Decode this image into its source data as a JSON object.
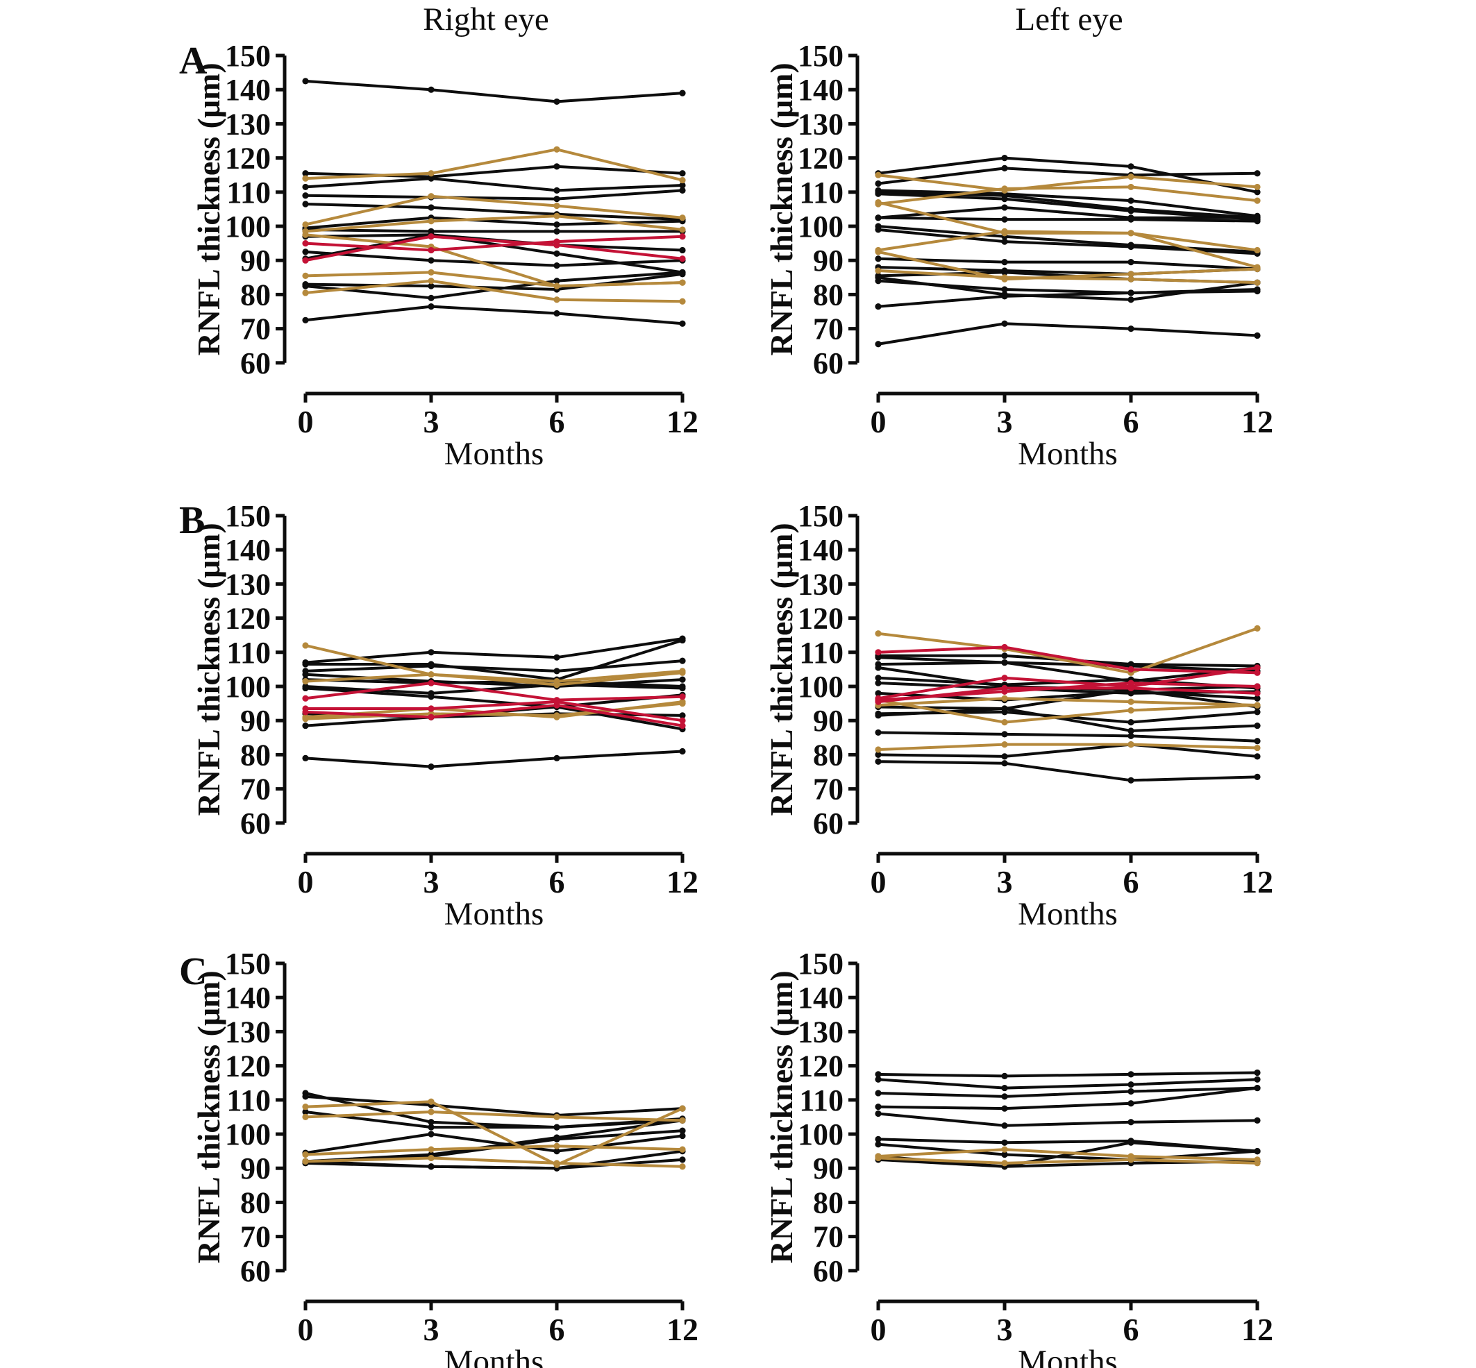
{
  "figure": {
    "titles": {
      "right": "Right eye",
      "left": "Left eye"
    },
    "row_letters": [
      {
        "letter": "A"
      },
      {
        "letter": "B"
      },
      {
        "letter": "C"
      }
    ]
  },
  "colors": {
    "black": "#0d0d0d",
    "tan": "#b5893c",
    "red": "#c41236",
    "axis": "#0d0d0d"
  },
  "axes": {
    "ylabel": "RNFL thickness (μm)",
    "xlabel": "Months",
    "y_ticks": [
      150,
      140,
      130,
      120,
      110,
      100,
      90,
      80,
      70,
      60
    ],
    "x_ticks": [
      "0",
      "3",
      "6",
      "12"
    ],
    "ylim": [
      60,
      150
    ],
    "x_spacing": "equal"
  },
  "chart_data": [
    {
      "type": "line",
      "id": "A-right",
      "row": "A",
      "eye": "Right eye",
      "x": [
        0,
        3,
        6,
        12
      ],
      "series": [
        {
          "color": "black",
          "values": [
            142.5,
            140,
            136.5,
            139
          ]
        },
        {
          "color": "black",
          "values": [
            115.5,
            114.5,
            117.5,
            115.5
          ]
        },
        {
          "color": "black",
          "values": [
            111.5,
            114,
            110.5,
            112
          ]
        },
        {
          "color": "black",
          "values": [
            109,
            108.5,
            108,
            110.5
          ]
        },
        {
          "color": "black",
          "values": [
            106.5,
            105.5,
            103.5,
            102
          ]
        },
        {
          "color": "black",
          "values": [
            99.5,
            102.5,
            100.5,
            101.5
          ]
        },
        {
          "color": "black",
          "values": [
            99,
            98.5,
            98.5,
            98.5
          ]
        },
        {
          "color": "black",
          "values": [
            97,
            97.5,
            94.5,
            93
          ]
        },
        {
          "color": "black",
          "values": [
            92.5,
            90,
            88.5,
            90
          ]
        },
        {
          "color": "black",
          "values": [
            90.5,
            97.5,
            92,
            86.5
          ]
        },
        {
          "color": "black",
          "values": [
            83,
            82.5,
            81.5,
            86
          ]
        },
        {
          "color": "black",
          "values": [
            82.5,
            79,
            84,
            86.5
          ]
        },
        {
          "color": "black",
          "values": [
            72.5,
            76.5,
            74.5,
            71.5
          ]
        },
        {
          "color": "tan",
          "values": [
            114,
            115.5,
            122.5,
            113.5
          ]
        },
        {
          "color": "tan",
          "values": [
            100.5,
            108.8,
            106,
            102.5
          ]
        },
        {
          "color": "tan",
          "values": [
            98.5,
            101.5,
            103,
            99
          ]
        },
        {
          "color": "tan",
          "values": [
            97.5,
            94,
            82.5,
            83.5
          ]
        },
        {
          "color": "tan",
          "values": [
            85.5,
            86.5,
            82.5,
            83.5
          ]
        },
        {
          "color": "tan",
          "values": [
            80.5,
            84,
            78.5,
            78
          ]
        },
        {
          "color": "red",
          "values": [
            95,
            93,
            95.5,
            97
          ]
        },
        {
          "color": "red",
          "values": [
            90,
            97,
            94.5,
            90.5
          ]
        }
      ]
    },
    {
      "type": "line",
      "id": "A-left",
      "row": "A",
      "eye": "Left eye",
      "x": [
        0,
        3,
        6,
        12
      ],
      "series": [
        {
          "color": "black",
          "values": [
            115.5,
            120,
            117.5,
            110
          ]
        },
        {
          "color": "black",
          "values": [
            112.5,
            117,
            115,
            115.5
          ]
        },
        {
          "color": "black",
          "values": [
            110.5,
            109.5,
            107.5,
            103
          ]
        },
        {
          "color": "black",
          "values": [
            110,
            109,
            105,
            102.5
          ]
        },
        {
          "color": "black",
          "values": [
            109.5,
            108,
            104.5,
            102
          ]
        },
        {
          "color": "black",
          "values": [
            102.5,
            105.5,
            102.5,
            102.5
          ]
        },
        {
          "color": "black",
          "values": [
            102.5,
            102,
            102,
            101.5
          ]
        },
        {
          "color": "black",
          "values": [
            100,
            97,
            94.5,
            92.5
          ]
        },
        {
          "color": "black",
          "values": [
            99,
            95.5,
            94,
            92
          ]
        },
        {
          "color": "black",
          "values": [
            90.5,
            89.5,
            89.5,
            87.5
          ]
        },
        {
          "color": "black",
          "values": [
            88,
            87,
            86,
            87.5
          ]
        },
        {
          "color": "black",
          "values": [
            85.5,
            86.5,
            84.5,
            83.5
          ]
        },
        {
          "color": "black",
          "values": [
            84,
            81.5,
            80.5,
            81.5
          ]
        },
        {
          "color": "black",
          "values": [
            85,
            80,
            78.5,
            83.5
          ]
        },
        {
          "color": "black",
          "values": [
            76.5,
            79.5,
            80.5,
            81
          ]
        },
        {
          "color": "black",
          "values": [
            65.5,
            71.5,
            70,
            68
          ]
        },
        {
          "color": "tan",
          "values": [
            115,
            110.5,
            114.5,
            111.5
          ]
        },
        {
          "color": "tan",
          "values": [
            106.5,
            111,
            111.5,
            107.5
          ]
        },
        {
          "color": "tan",
          "values": [
            107,
            98,
            98,
            93
          ]
        },
        {
          "color": "tan",
          "values": [
            93,
            98.5,
            98,
            88
          ]
        },
        {
          "color": "tan",
          "values": [
            92.5,
            84.5,
            86,
            87.5
          ]
        },
        {
          "color": "tan",
          "values": [
            87,
            85,
            84.5,
            83.5
          ]
        }
      ]
    },
    {
      "type": "line",
      "id": "B-right",
      "row": "B",
      "eye": "Right eye",
      "x": [
        0,
        3,
        6,
        12
      ],
      "series": [
        {
          "color": "black",
          "values": [
            107,
            110,
            108.5,
            114
          ]
        },
        {
          "color": "black",
          "values": [
            106.5,
            106.5,
            102,
            113.5
          ]
        },
        {
          "color": "black",
          "values": [
            104.5,
            106,
            104.5,
            107.5
          ]
        },
        {
          "color": "black",
          "values": [
            103.5,
            101.5,
            100,
            102
          ]
        },
        {
          "color": "black",
          "values": [
            102,
            101,
            101.5,
            100
          ]
        },
        {
          "color": "black",
          "values": [
            100,
            98,
            100.5,
            99.5
          ]
        },
        {
          "color": "black",
          "values": [
            99.5,
            97,
            94,
            97.5
          ]
        },
        {
          "color": "black",
          "values": [
            92,
            91,
            92,
            91.5
          ]
        },
        {
          "color": "black",
          "values": [
            88.5,
            91,
            94,
            87.5
          ]
        },
        {
          "color": "black",
          "values": [
            79,
            76.5,
            79,
            81
          ]
        },
        {
          "color": "tan",
          "values": [
            112,
            103.5,
            101.5,
            104.5
          ]
        },
        {
          "color": "tan",
          "values": [
            101.5,
            103.5,
            100.5,
            104
          ]
        },
        {
          "color": "tan",
          "values": [
            91,
            93.5,
            91,
            95.5
          ]
        },
        {
          "color": "tan",
          "values": [
            90.5,
            92,
            91.5,
            95
          ]
        },
        {
          "color": "red",
          "values": [
            96.5,
            101,
            96,
            97
          ]
        },
        {
          "color": "red",
          "values": [
            93.5,
            93.5,
            95.5,
            90
          ]
        },
        {
          "color": "red",
          "values": [
            92.5,
            91,
            94.5,
            88.5
          ]
        }
      ]
    },
    {
      "type": "line",
      "id": "B-left",
      "row": "B",
      "eye": "Left eye",
      "x": [
        0,
        3,
        6,
        12
      ],
      "series": [
        {
          "color": "black",
          "values": [
            109,
            109,
            106.5,
            106
          ]
        },
        {
          "color": "black",
          "values": [
            108.5,
            107,
            106,
            104.5
          ]
        },
        {
          "color": "black",
          "values": [
            106.5,
            107,
            101.5,
            105.5
          ]
        },
        {
          "color": "black",
          "values": [
            105.5,
            100,
            99,
            100
          ]
        },
        {
          "color": "black",
          "values": [
            102.5,
            100.5,
            102,
            99.5
          ]
        },
        {
          "color": "black",
          "values": [
            101,
            99.5,
            98,
            98.5
          ]
        },
        {
          "color": "black",
          "values": [
            98,
            96,
            98.5,
            96.5
          ]
        },
        {
          "color": "black",
          "values": [
            94,
            93.5,
            99,
            94
          ]
        },
        {
          "color": "black",
          "values": [
            92,
            92.5,
            89.5,
            92.5
          ]
        },
        {
          "color": "black",
          "values": [
            91.5,
            93.5,
            87,
            88.5
          ]
        },
        {
          "color": "black",
          "values": [
            86.5,
            86,
            85.5,
            84
          ]
        },
        {
          "color": "black",
          "values": [
            80,
            79.5,
            83,
            79.5
          ]
        },
        {
          "color": "black",
          "values": [
            78,
            77.5,
            72.5,
            73.5
          ]
        },
        {
          "color": "tan",
          "values": [
            115.5,
            111,
            104,
            117
          ]
        },
        {
          "color": "tan",
          "values": [
            96,
            89.5,
            93,
            94.5
          ]
        },
        {
          "color": "tan",
          "values": [
            94.5,
            96.5,
            95.5,
            94.5
          ]
        },
        {
          "color": "tan",
          "values": [
            81.5,
            83,
            83,
            82
          ]
        },
        {
          "color": "red",
          "values": [
            110,
            111.5,
            105,
            104
          ]
        },
        {
          "color": "red",
          "values": [
            96.5,
            102.5,
            100,
            105.5
          ]
        },
        {
          "color": "red",
          "values": [
            96,
            98.5,
            101,
            100
          ]
        },
        {
          "color": "red",
          "values": [
            95.5,
            99.5,
            99.5,
            98
          ]
        }
      ]
    },
    {
      "type": "line",
      "id": "C-right",
      "row": "C",
      "eye": "Right eye",
      "x": [
        0,
        3,
        6,
        12
      ],
      "series": [
        {
          "color": "black",
          "values": [
            112,
            103.5,
            102,
            104.5
          ]
        },
        {
          "color": "black",
          "values": [
            111,
            108.5,
            105.5,
            107.5
          ]
        },
        {
          "color": "black",
          "values": [
            106.5,
            102,
            102,
            104
          ]
        },
        {
          "color": "black",
          "values": [
            94.5,
            100,
            95,
            99.5
          ]
        },
        {
          "color": "black",
          "values": [
            92,
            94,
            99,
            104
          ]
        },
        {
          "color": "black",
          "values": [
            92,
            93.5,
            98.5,
            101
          ]
        },
        {
          "color": "black",
          "values": [
            91.5,
            90.5,
            90,
            95
          ]
        },
        {
          "color": "black",
          "values": [
            92,
            90.5,
            90,
            92.5
          ]
        },
        {
          "color": "tan",
          "values": [
            108,
            109.5,
            91,
            107.5
          ]
        },
        {
          "color": "tan",
          "values": [
            105,
            106.5,
            105,
            104
          ]
        },
        {
          "color": "tan",
          "values": [
            94,
            95.5,
            96.5,
            95.5
          ]
        },
        {
          "color": "tan",
          "values": [
            92,
            93,
            91.5,
            90.5
          ]
        }
      ]
    },
    {
      "type": "line",
      "id": "C-left",
      "row": "C",
      "eye": "Left eye",
      "x": [
        0,
        3,
        6,
        12
      ],
      "series": [
        {
          "color": "black",
          "values": [
            117.5,
            117,
            117.5,
            118
          ]
        },
        {
          "color": "black",
          "values": [
            116,
            113.5,
            114.5,
            116
          ]
        },
        {
          "color": "black",
          "values": [
            112,
            111,
            112.5,
            113.5
          ]
        },
        {
          "color": "black",
          "values": [
            108,
            107.5,
            109,
            113.5
          ]
        },
        {
          "color": "black",
          "values": [
            106,
            102.5,
            103.5,
            104
          ]
        },
        {
          "color": "black",
          "values": [
            98.5,
            97.5,
            98,
            95
          ]
        },
        {
          "color": "black",
          "values": [
            97,
            94,
            92.5,
            95
          ]
        },
        {
          "color": "black",
          "values": [
            93.5,
            90.5,
            97.5,
            95
          ]
        },
        {
          "color": "black",
          "values": [
            92.5,
            90.5,
            91.5,
            92
          ]
        },
        {
          "color": "tan",
          "values": [
            93.5,
            95.5,
            93.5,
            92.5
          ]
        },
        {
          "color": "tan",
          "values": [
            93,
            91.5,
            92.5,
            91.5
          ]
        }
      ]
    }
  ]
}
